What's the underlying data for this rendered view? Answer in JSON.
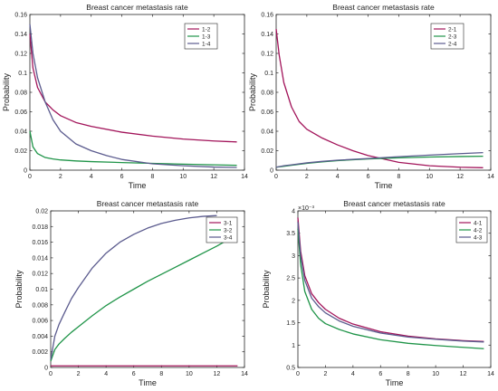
{
  "chart_data": [
    {
      "type": "line",
      "title": "Breast cancer metastasis rate",
      "xlabel": "Time",
      "ylabel": "Probability",
      "xlim": [
        0,
        14
      ],
      "ylim": [
        0,
        0.16
      ],
      "xticks": [
        0,
        2,
        4,
        6,
        8,
        10,
        12,
        14
      ],
      "yticks": [
        0,
        0.02,
        0.04,
        0.06,
        0.08,
        0.1,
        0.12,
        0.14,
        0.16
      ],
      "ytick_labels": [
        "0",
        "0.02",
        "0.04",
        "0.06",
        "0.08",
        "0.1",
        "0.12",
        "0.14",
        "0.16"
      ],
      "legend_position": "top-right",
      "series": [
        {
          "name": "1-2",
          "color": "#a2145a",
          "x": [
            0,
            0.2,
            0.5,
            1,
            1.5,
            2,
            3,
            4,
            6,
            8,
            10,
            12,
            13.5
          ],
          "y": [
            0.14,
            0.105,
            0.085,
            0.07,
            0.062,
            0.056,
            0.049,
            0.045,
            0.039,
            0.035,
            0.032,
            0.03,
            0.029
          ]
        },
        {
          "name": "1-3",
          "color": "#1f9448",
          "x": [
            0,
            0.2,
            0.5,
            1,
            1.5,
            2,
            3,
            4,
            6,
            8,
            10,
            12,
            13.5
          ],
          "y": [
            0.04,
            0.024,
            0.017,
            0.013,
            0.0115,
            0.0105,
            0.0095,
            0.0088,
            0.0078,
            0.007,
            0.0062,
            0.0055,
            0.005
          ]
        },
        {
          "name": "1-4",
          "color": "#5b5b8e",
          "x": [
            0,
            0.2,
            0.5,
            1,
            1.5,
            2,
            3,
            4,
            5,
            6,
            8,
            10,
            12,
            13.5
          ],
          "y": [
            0.15,
            0.12,
            0.095,
            0.07,
            0.052,
            0.04,
            0.027,
            0.02,
            0.015,
            0.011,
            0.0065,
            0.0045,
            0.0032,
            0.0028
          ]
        }
      ]
    },
    {
      "type": "line",
      "title": "Breast cancer metastasis rate",
      "xlabel": "Time",
      "ylabel": "Probability",
      "xlim": [
        0,
        14
      ],
      "ylim": [
        0,
        0.16
      ],
      "xticks": [
        0,
        2,
        4,
        6,
        8,
        10,
        12,
        14
      ],
      "yticks": [
        0,
        0.02,
        0.04,
        0.06,
        0.08,
        0.1,
        0.12,
        0.14,
        0.16
      ],
      "ytick_labels": [
        "0",
        "0.02",
        "0.04",
        "0.06",
        "0.08",
        "0.1",
        "0.12",
        "0.14",
        "0.16"
      ],
      "legend_position": "top-right",
      "series": [
        {
          "name": "2-1",
          "color": "#a2145a",
          "x": [
            0,
            0.2,
            0.5,
            1,
            1.5,
            2,
            3,
            4,
            5,
            6,
            8,
            10,
            12,
            13.5
          ],
          "y": [
            0.145,
            0.118,
            0.09,
            0.065,
            0.05,
            0.042,
            0.033,
            0.026,
            0.02,
            0.015,
            0.008,
            0.0045,
            0.003,
            0.0025
          ]
        },
        {
          "name": "2-3",
          "color": "#1f9448",
          "x": [
            0,
            0.5,
            1,
            2,
            3,
            4,
            6,
            8,
            10,
            12,
            13.5
          ],
          "y": [
            0.003,
            0.004,
            0.005,
            0.007,
            0.0085,
            0.0098,
            0.0115,
            0.0127,
            0.0135,
            0.014,
            0.0143
          ]
        },
        {
          "name": "2-4",
          "color": "#5b5b8e",
          "x": [
            0,
            0.5,
            1,
            2,
            3,
            4,
            6,
            8,
            10,
            12,
            13.5
          ],
          "y": [
            0.003,
            0.0045,
            0.0055,
            0.0075,
            0.009,
            0.0102,
            0.012,
            0.0138,
            0.0155,
            0.017,
            0.018
          ]
        }
      ]
    },
    {
      "type": "line",
      "title": "Breast cancer metastasis rate",
      "xlabel": "Time",
      "ylabel": "Probability",
      "xlim": [
        0,
        14
      ],
      "ylim": [
        0,
        0.02
      ],
      "xticks": [
        0,
        2,
        4,
        6,
        8,
        10,
        12,
        14
      ],
      "yticks": [
        0,
        0.002,
        0.004,
        0.006,
        0.008,
        0.01,
        0.012,
        0.014,
        0.016,
        0.018,
        0.02
      ],
      "ytick_labels": [
        "0",
        "0.002",
        "0.004",
        "0.006",
        "0.008",
        "0.01",
        "0.012",
        "0.014",
        "0.016",
        "0.018",
        "0.02"
      ],
      "legend_position": "top-right",
      "series": [
        {
          "name": "3-1",
          "color": "#a2145a",
          "x": [
            0,
            2,
            4,
            6,
            8,
            10,
            12,
            13.5
          ],
          "y": [
            0.0002,
            0.0002,
            0.0002,
            0.0002,
            0.0002,
            0.0002,
            0.0002,
            0.0002
          ]
        },
        {
          "name": "3-2",
          "color": "#1f9448",
          "x": [
            0,
            0.3,
            0.6,
            1,
            1.5,
            2,
            3,
            4,
            5,
            6,
            7,
            8,
            9,
            10,
            11,
            12,
            12.5
          ],
          "y": [
            0.0008,
            0.0023,
            0.003,
            0.0037,
            0.0045,
            0.0052,
            0.0066,
            0.0079,
            0.009,
            0.01,
            0.011,
            0.0119,
            0.0128,
            0.0137,
            0.0146,
            0.0155,
            0.016
          ]
        },
        {
          "name": "3-4",
          "color": "#5b5b8e",
          "x": [
            0,
            0.3,
            0.6,
            1,
            1.5,
            2,
            3,
            4,
            5,
            6,
            7,
            8,
            9,
            10,
            11,
            12
          ],
          "y": [
            0.001,
            0.004,
            0.0055,
            0.007,
            0.0088,
            0.0102,
            0.0127,
            0.0146,
            0.016,
            0.017,
            0.0178,
            0.0184,
            0.0188,
            0.0191,
            0.0193,
            0.0194
          ]
        }
      ]
    },
    {
      "type": "line",
      "title": "Breast cancer metastasis rate",
      "xlabel": "Time",
      "ylabel": "Probability",
      "y_scale_note": "×10⁻³",
      "xlim": [
        0,
        14
      ],
      "ylim": [
        0.5,
        4
      ],
      "xticks": [
        0,
        2,
        4,
        6,
        8,
        10,
        12,
        14
      ],
      "yticks": [
        0.5,
        1,
        1.5,
        2,
        2.5,
        3,
        3.5,
        4
      ],
      "ytick_labels": [
        "0.5",
        "1",
        "1.5",
        "2",
        "2.5",
        "3",
        "3.5",
        "4"
      ],
      "legend_position": "top-right",
      "series": [
        {
          "name": "4-1",
          "color": "#a2145a",
          "x": [
            0,
            0.2,
            0.5,
            1,
            1.5,
            2,
            3,
            4,
            6,
            8,
            10,
            12,
            13.5
          ],
          "y": [
            3.85,
            3.1,
            2.55,
            2.15,
            1.95,
            1.8,
            1.6,
            1.47,
            1.3,
            1.2,
            1.14,
            1.1,
            1.08
          ]
        },
        {
          "name": "4-2",
          "color": "#1f9448",
          "x": [
            0,
            0.2,
            0.5,
            1,
            1.5,
            2,
            3,
            4,
            6,
            8,
            10,
            12,
            13.5
          ],
          "y": [
            3.6,
            2.8,
            2.2,
            1.8,
            1.6,
            1.48,
            1.35,
            1.25,
            1.12,
            1.04,
            0.99,
            0.95,
            0.92
          ]
        },
        {
          "name": "4-3",
          "color": "#5b5b8e",
          "x": [
            0,
            0.2,
            0.5,
            1,
            1.5,
            2,
            3,
            4,
            6,
            8,
            10,
            12,
            13.5
          ],
          "y": [
            3.75,
            3.0,
            2.45,
            2.05,
            1.86,
            1.72,
            1.54,
            1.42,
            1.27,
            1.18,
            1.13,
            1.09,
            1.07
          ]
        }
      ]
    }
  ]
}
